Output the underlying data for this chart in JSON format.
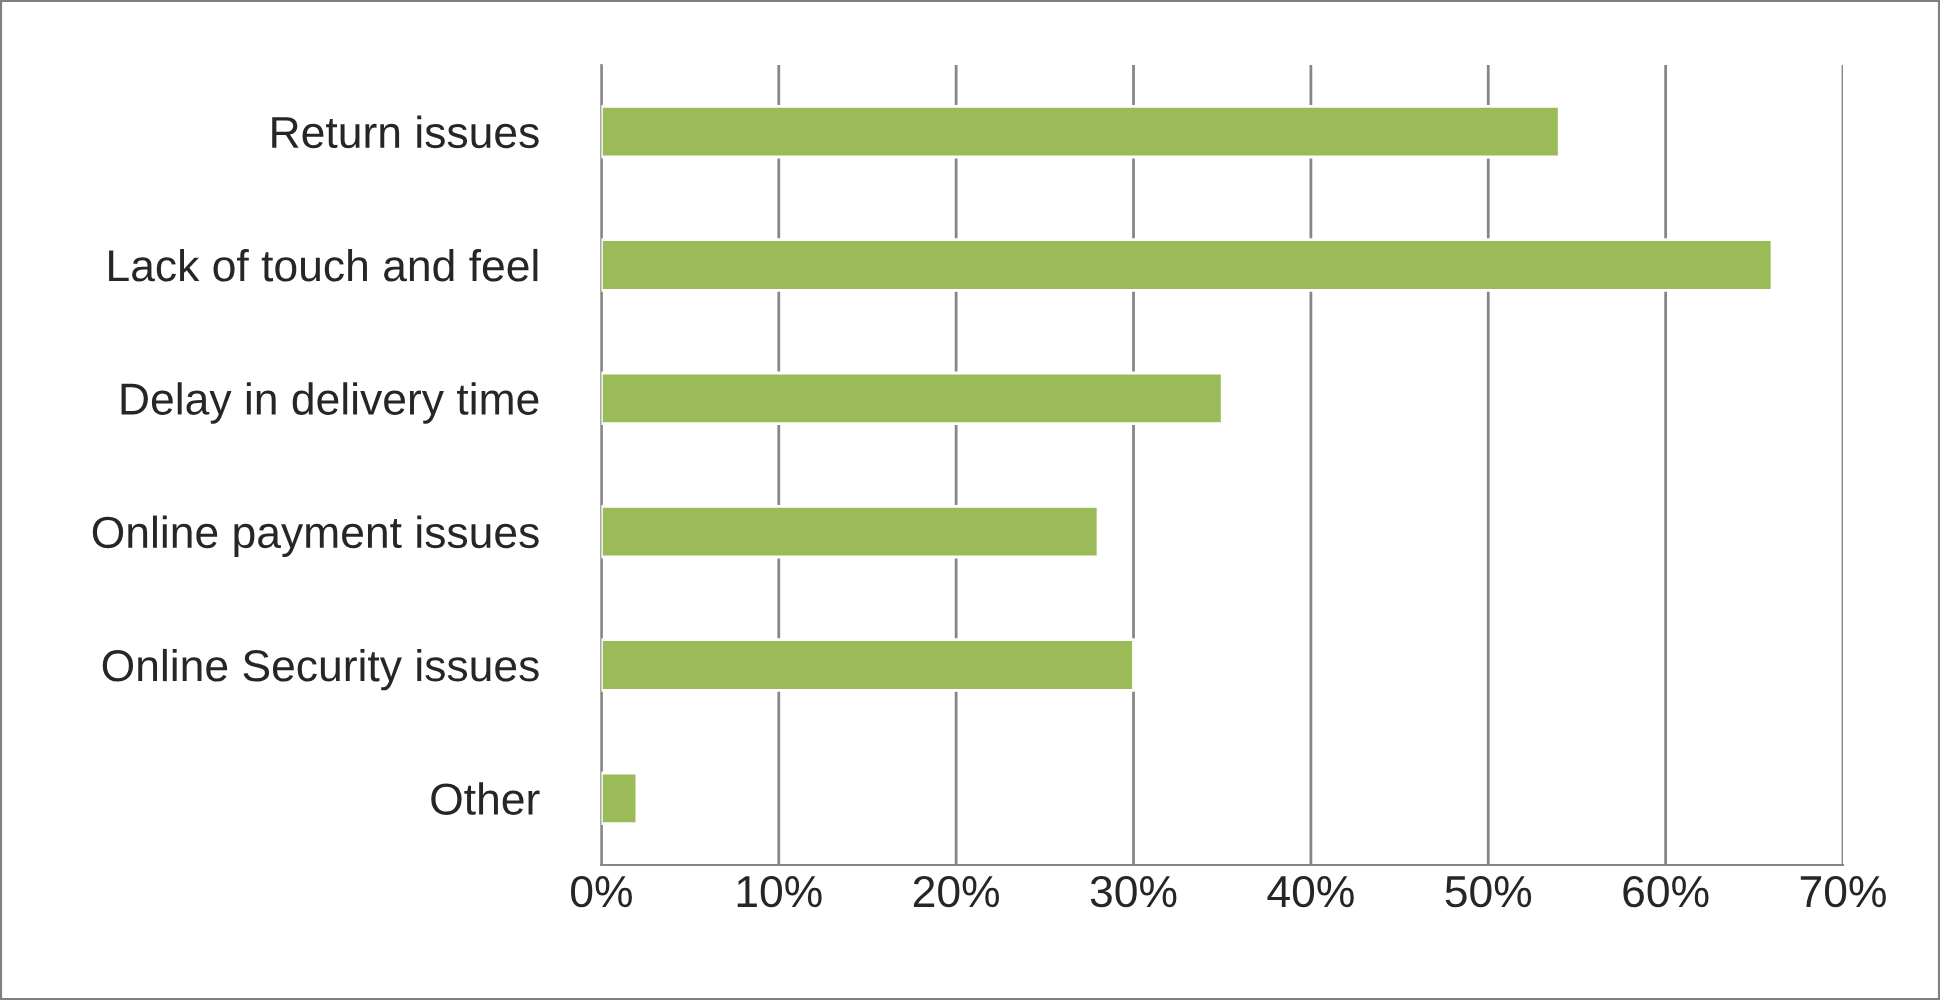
{
  "chart_data": {
    "type": "bar",
    "orientation": "horizontal",
    "categories": [
      "Return issues",
      "Lack of touch and feel",
      "Delay in delivery time",
      "Online payment issues",
      "Online Security issues",
      "Other"
    ],
    "values": [
      54,
      66,
      35,
      28,
      30,
      2
    ],
    "color": "#9bbb59",
    "xlim": [
      0,
      70
    ],
    "xticks": [
      {
        "value": 0,
        "label": "0%"
      },
      {
        "value": 10,
        "label": "10%"
      },
      {
        "value": 20,
        "label": "20%"
      },
      {
        "value": 30,
        "label": "30%"
      },
      {
        "value": 40,
        "label": "40%"
      },
      {
        "value": 50,
        "label": "50%"
      },
      {
        "value": 60,
        "label": "60%"
      },
      {
        "value": 70,
        "label": "70%"
      }
    ],
    "grid": "x",
    "legend": false
  }
}
